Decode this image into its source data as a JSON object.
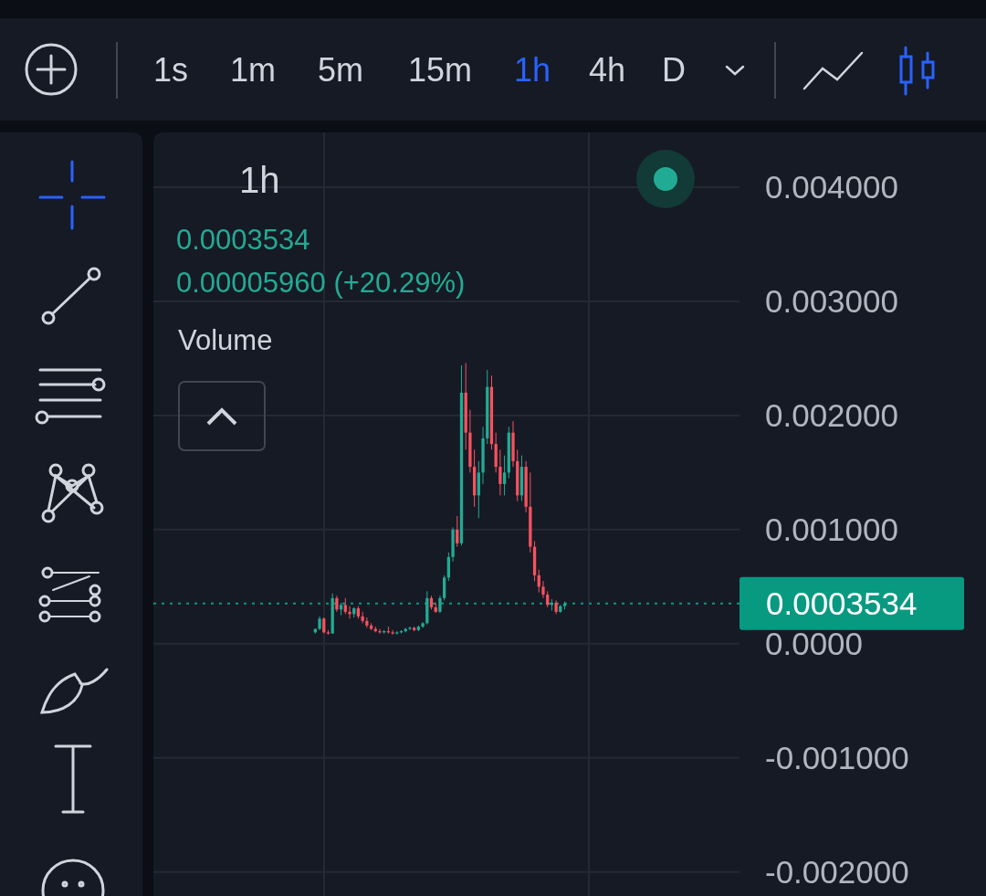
{
  "chart_data": {
    "type": "candlestick",
    "title": "1h",
    "annotations": [
      "1s",
      "1m",
      "5m",
      "15m",
      "1h",
      "4h",
      "D",
      "0.0003534",
      "0.00005960 (+20.29%)",
      "Volume"
    ],
    "ylim": [
      -0.00221,
      0.00448
    ],
    "yticks": [
      {
        "value": 0.004,
        "label": "0.004000"
      },
      {
        "value": 0.003,
        "label": "0.003000"
      },
      {
        "value": 0.002,
        "label": "0.002000"
      },
      {
        "value": 0.001,
        "label": "0.001000"
      },
      {
        "value": 0,
        "label": "0.0000"
      },
      {
        "value": -0.001,
        "label": "-0.001000"
      },
      {
        "value": -0.002,
        "label": "-0.002000"
      }
    ],
    "grid": true,
    "ref_lines": [
      {
        "axis": "y",
        "value": 0.0003534,
        "label": "0.0003534",
        "color": "#089981",
        "line_style": "dotted"
      }
    ],
    "categories": [
      null,
      null,
      null,
      null,
      null,
      null,
      null,
      null,
      null,
      null,
      null,
      null,
      null,
      null,
      null,
      null,
      null,
      null,
      null,
      null,
      null,
      null,
      null,
      null,
      null,
      null,
      null,
      null,
      null,
      null,
      null,
      null,
      null,
      null,
      null,
      null,
      null,
      null,
      null,
      null,
      null,
      null,
      null,
      null,
      null,
      null,
      null,
      null,
      null,
      null,
      null,
      null,
      null,
      null,
      null,
      null,
      null,
      null,
      null,
      null,
      null,
      null,
      null,
      null,
      null,
      null,
      null,
      null,
      null,
      null,
      null,
      null,
      null,
      null,
      null,
      null,
      null,
      null,
      null,
      null,
      null,
      null,
      null,
      null,
      null,
      null,
      null,
      null,
      null,
      null,
      null,
      null,
      null,
      null,
      null,
      null,
      null,
      null,
      null,
      null,
      null,
      null,
      null,
      null,
      null,
      null,
      null,
      null,
      null,
      null,
      null,
      null,
      null,
      null,
      null,
      null,
      null,
      null,
      null,
      null,
      null,
      null,
      null,
      null,
      null,
      null,
      null,
      null,
      null,
      null,
      null,
      null,
      null,
      null,
      null,
      null
    ],
    "ohlc": [
      null,
      null,
      null,
      null,
      null,
      null,
      null,
      null,
      null,
      null,
      null,
      null,
      null,
      null,
      null,
      null,
      null,
      null,
      null,
      null,
      null,
      null,
      null,
      null,
      null,
      null,
      null,
      null,
      null,
      null,
      null,
      null,
      null,
      null,
      null,
      null,
      null,
      [
        0.0001,
        0.00013,
        9e-05,
        0.00013
      ],
      [
        0.00013,
        0.00024,
        0.00012,
        0.00022
      ],
      [
        0.00022,
        0.00023,
        9e-05,
        0.0001
      ],
      [
        0.0001,
        0.00012,
        8e-05,
        9e-05
      ],
      [
        9e-05,
        0.00044,
        9e-05,
        0.0004
      ],
      [
        0.0004,
        0.00042,
        0.00028,
        0.0003
      ],
      [
        0.0003,
        0.00036,
        0.00025,
        0.00034
      ],
      [
        0.00034,
        0.0004,
        0.00026,
        0.00028
      ],
      [
        0.00028,
        0.00033,
        0.00022,
        0.00026
      ],
      [
        0.00026,
        0.00032,
        0.00023,
        0.00031
      ],
      [
        0.00031,
        0.00033,
        0.00022,
        0.00024
      ],
      [
        0.00024,
        0.00028,
        0.00018,
        0.0002
      ],
      [
        0.0002,
        0.00023,
        0.00014,
        0.00016
      ],
      [
        0.00016,
        0.00018,
        0.00012,
        0.00013
      ],
      [
        0.00013,
        0.00015,
        0.0001,
        0.00011
      ],
      [
        0.00011,
        0.00013,
        9e-05,
        0.0001
      ],
      [
        0.0001,
        0.00012,
        9e-05,
        0.00011
      ],
      [
        0.00011,
        0.00015,
        9e-05,
        0.0001
      ],
      [
        0.0001,
        0.00012,
        8e-05,
        9e-05
      ],
      [
        9e-05,
        0.00011,
        8e-05,
        0.0001
      ],
      [
        0.0001,
        0.00012,
        9e-05,
        0.00011
      ],
      [
        0.00011,
        0.00014,
        0.0001,
        0.00013
      ],
      [
        0.00013,
        0.00015,
        0.00012,
        0.00014
      ],
      [
        0.00014,
        0.00015,
        0.00011,
        0.00012
      ],
      [
        0.00012,
        0.00016,
        0.00011,
        0.00015
      ],
      [
        0.00015,
        0.00019,
        0.00014,
        0.00018
      ],
      [
        0.00018,
        0.00046,
        0.00017,
        0.0004
      ],
      [
        0.0004,
        0.00042,
        0.0003,
        0.00032
      ],
      [
        0.00032,
        0.00036,
        0.00027,
        0.00028
      ],
      [
        0.00028,
        0.00042,
        0.00027,
        0.0004
      ],
      [
        0.0004,
        0.0006,
        0.00038,
        0.00058
      ],
      [
        0.00058,
        0.0008,
        0.00055,
        0.00076
      ],
      [
        0.00076,
        0.00102,
        0.00072,
        0.001
      ],
      [
        0.001,
        0.00112,
        0.00085,
        0.00088
      ],
      [
        0.00088,
        0.00244,
        0.00086,
        0.0022
      ],
      [
        0.0022,
        0.00246,
        0.0017,
        0.00185
      ],
      [
        0.00185,
        0.00205,
        0.0015,
        0.00155
      ],
      [
        0.00155,
        0.0017,
        0.0012,
        0.0013
      ],
      [
        0.0013,
        0.0016,
        0.0011,
        0.0015
      ],
      [
        0.0015,
        0.0019,
        0.0014,
        0.0018
      ],
      [
        0.0018,
        0.0024,
        0.00175,
        0.00225
      ],
      [
        0.00225,
        0.00235,
        0.0017,
        0.00175
      ],
      [
        0.00175,
        0.00185,
        0.0015,
        0.00155
      ],
      [
        0.00155,
        0.0017,
        0.0013,
        0.0014
      ],
      [
        0.0014,
        0.00165,
        0.0013,
        0.0015
      ],
      [
        0.0015,
        0.0019,
        0.00145,
        0.00185
      ],
      [
        0.00185,
        0.00195,
        0.00155,
        0.0016
      ],
      [
        0.0016,
        0.0017,
        0.00125,
        0.0013
      ],
      [
        0.0013,
        0.00165,
        0.00125,
        0.00155
      ],
      [
        0.00155,
        0.0016,
        0.00115,
        0.0012
      ],
      [
        0.0012,
        0.0015,
        0.0008,
        0.00085
      ],
      [
        0.00085,
        0.0009,
        0.00055,
        0.0006
      ],
      [
        0.0006,
        0.00065,
        0.00045,
        0.0005
      ],
      [
        0.0005,
        0.00055,
        0.0004,
        0.00043
      ],
      [
        0.00043,
        0.00046,
        0.00032,
        0.00034
      ],
      [
        0.00034,
        0.00039,
        0.00029,
        0.00036
      ],
      [
        0.00036,
        0.00038,
        0.00026,
        0.00028
      ],
      [
        0.00028,
        0.00034,
        0.00027,
        0.00033
      ],
      [
        0.00033,
        0.00037,
        0.0003,
        0.0003534
      ],
      null,
      null,
      null,
      null,
      null,
      null,
      null,
      null,
      null,
      null,
      null,
      null,
      null,
      null,
      null,
      null,
      null,
      null,
      null,
      null,
      null,
      null,
      null,
      null,
      null,
      null,
      null,
      null,
      null,
      null,
      null,
      null,
      null,
      null,
      null,
      null,
      null,
      null,
      null,
      null
    ]
  }
}
